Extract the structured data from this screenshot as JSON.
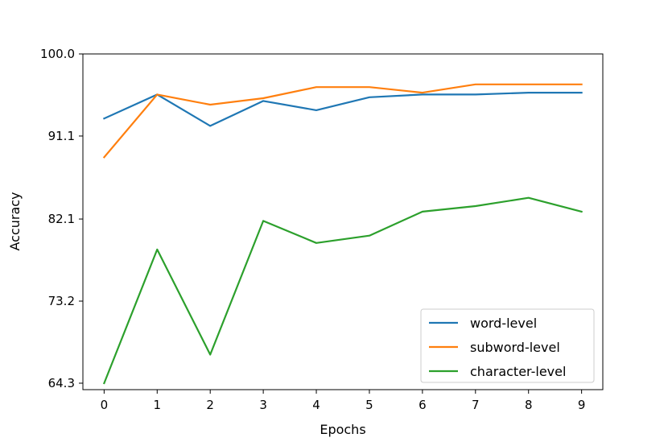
{
  "chart_data": {
    "type": "line",
    "xlabel": "Epochs",
    "ylabel": "Accuracy",
    "x": [
      0,
      1,
      2,
      3,
      4,
      5,
      6,
      7,
      8,
      9
    ],
    "x_ticks": [
      "0",
      "1",
      "2",
      "3",
      "4",
      "5",
      "6",
      "7",
      "8",
      "9"
    ],
    "y_ticks": [
      "64.3",
      "73.2",
      "82.1",
      "91.1",
      "100.0"
    ],
    "y_tick_values": [
      64.3,
      73.2,
      82.1,
      91.1,
      100.0
    ],
    "ylim": [
      63.6,
      100.0
    ],
    "xlim": [
      -0.4,
      9.4
    ],
    "grid": false,
    "legend_position": "lower-right",
    "series": [
      {
        "name": "word-level",
        "color": "#1f77b4",
        "values": [
          93.0,
          95.6,
          92.2,
          94.9,
          93.9,
          95.3,
          95.6,
          95.6,
          95.8,
          95.8
        ]
      },
      {
        "name": "subword-level",
        "color": "#ff7f0e",
        "values": [
          88.8,
          95.6,
          94.5,
          95.2,
          96.4,
          96.4,
          95.8,
          96.7,
          96.7,
          96.7
        ]
      },
      {
        "name": "character-level",
        "color": "#2ca02c",
        "values": [
          64.3,
          78.8,
          67.4,
          81.9,
          79.5,
          80.3,
          82.9,
          83.5,
          84.4,
          82.9
        ]
      }
    ]
  }
}
